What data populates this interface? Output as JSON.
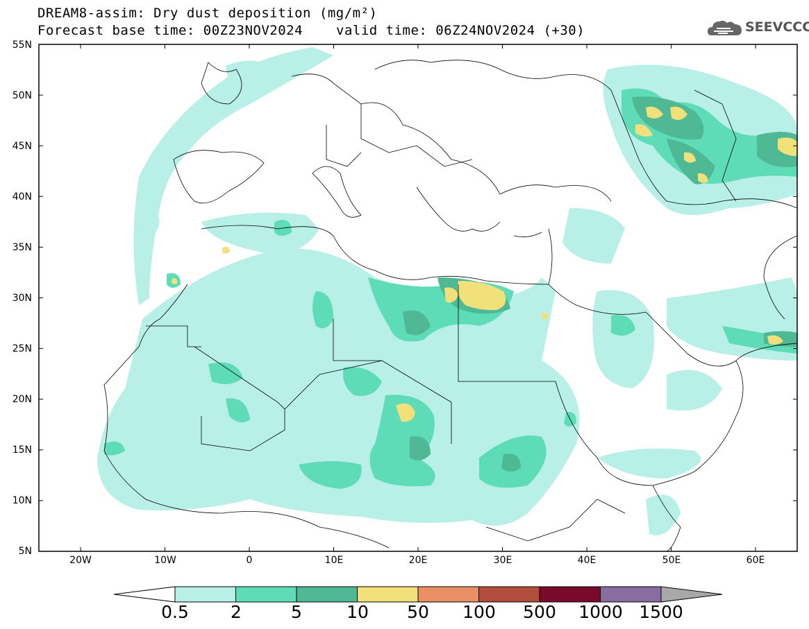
{
  "title": {
    "line1": "DREAM8-assim: Dry dust deposition (mg/m²)",
    "line2": "Forecast base time: 00Z23NOV2024",
    "valid": "valid time: 06Z24NOV2024 (+30)"
  },
  "logo": {
    "text": "SEEVCCC",
    "icon": "cloud-icon"
  },
  "axes": {
    "lat_labels": [
      "55N",
      "50N",
      "45N",
      "40N",
      "35N",
      "30N",
      "25N",
      "20N",
      "15N",
      "10N",
      "5N"
    ],
    "lon_labels": [
      "20W",
      "10W",
      "0",
      "10E",
      "20E",
      "30E",
      "40E",
      "50E",
      "60E"
    ]
  },
  "colorbar": {
    "labels": [
      "0.5",
      "2",
      "5",
      "10",
      "50",
      "100",
      "500",
      "1000",
      "1500"
    ],
    "colors": [
      "#b8efe6",
      "#5edcb8",
      "#4fb894",
      "#f2e07a",
      "#e98f64",
      "#b24c3c",
      "#7a0a2c",
      "#8a6da0",
      "#a8a8a8"
    ]
  }
}
